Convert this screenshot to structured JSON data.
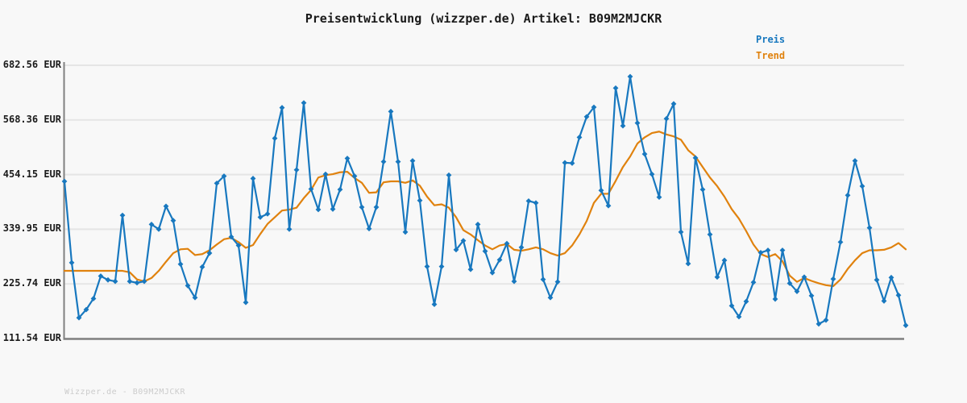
{
  "header": {
    "title": "Preisentwicklung (wizzper.de) Artikel: B09M2MJCKR"
  },
  "legend": {
    "items": [
      {
        "label": "Preis",
        "color": "#1878bf"
      },
      {
        "label": "Trend",
        "color": "#e0820e"
      }
    ]
  },
  "watermark": "Wizzper.de - B09M2MJCKR",
  "colors": {
    "background": "#f8f8f8",
    "grid": "#e5e5e5",
    "spine": "#808080",
    "text": "#1a1a1a",
    "watermark": "#cccccc",
    "price": "#1878bf",
    "trend": "#e0820e"
  },
  "chart_data": {
    "type": "line",
    "title": "Preisentwicklung (wizzper.de) Artikel: B09M2MJCKR",
    "xlabel": "",
    "ylabel": "",
    "currency": "EUR",
    "grid": "horizontal",
    "legend_position": "top-right",
    "x_tick_labels": [],
    "ylim": [
      111.54,
      682.56
    ],
    "y_ticks": [
      {
        "value": 682.56,
        "label": "682.56 EUR"
      },
      {
        "value": 568.36,
        "label": "568.36 EUR"
      },
      {
        "value": 454.15,
        "label": "454.15 EUR"
      },
      {
        "value": 339.95,
        "label": "339.95 EUR"
      },
      {
        "value": 225.74,
        "label": "225.74 EUR"
      },
      {
        "value": 111.54,
        "label": "111.54 EUR"
      }
    ],
    "series": [
      {
        "name": "Preis",
        "color": "#1878bf",
        "marker": "diamond",
        "values": [
          440,
          270,
          155,
          172,
          195,
          242,
          234,
          231,
          369,
          231,
          228,
          231,
          350,
          340,
          388,
          358,
          267,
          222,
          197,
          261,
          290,
          436,
          451,
          324,
          306,
          187,
          446,
          365,
          372,
          530,
          594,
          340,
          464,
          604,
          424,
          381,
          455,
          382,
          423,
          488,
          451,
          386,
          341,
          386,
          481,
          586,
          481,
          334,
          483,
          400,
          262,
          183,
          262,
          453,
          297,
          316,
          256,
          350,
          294,
          249,
          276,
          310,
          231,
          302,
          399,
          395,
          235,
          197,
          230,
          479,
          478,
          532,
          575,
          595,
          421,
          389,
          635,
          556,
          659,
          562,
          497,
          455,
          407,
          571,
          602,
          334,
          268,
          489,
          423,
          329,
          240,
          275,
          180,
          157,
          189,
          229,
          291,
          296,
          194,
          296,
          227,
          210,
          240,
          201,
          142,
          150,
          236,
          313,
          411,
          483,
          430,
          343,
          234,
          190,
          239,
          202,
          139
        ]
      },
      {
        "name": "Trend",
        "color": "#e0820e",
        "marker": "none",
        "values": [
          253,
          253,
          253,
          253,
          253,
          253,
          253,
          253,
          253,
          250,
          235,
          231,
          238,
          253,
          272,
          290,
          298,
          299,
          286,
          288,
          296,
          308,
          319,
          322,
          313,
          301,
          307,
          330,
          351,
          365,
          379,
          381,
          385,
          405,
          422,
          448,
          453,
          455,
          459,
          460,
          447,
          437,
          416,
          417,
          438,
          440,
          440,
          437,
          442,
          431,
          408,
          390,
          392,
          385,
          365,
          338,
          329,
          317,
          306,
          298,
          306,
          309,
          297,
          295,
          298,
          302,
          298,
          290,
          285,
          290,
          306,
          329,
          357,
          395,
          414,
          414,
          441,
          470,
          492,
          519,
          532,
          541,
          544,
          538,
          534,
          527,
          505,
          492,
          470,
          448,
          430,
          408,
          382,
          362,
          336,
          308,
          288,
          282,
          288,
          273,
          243,
          230,
          238,
          232,
          227,
          223,
          221,
          235,
          257,
          275,
          290,
          296,
          296,
          297,
          302,
          311,
          298
        ]
      }
    ]
  }
}
